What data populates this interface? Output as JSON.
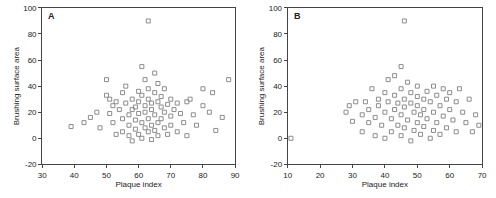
{
  "chart_data": [
    {
      "type": "scatter",
      "title": "A",
      "xlabel": "Plaque index",
      "ylabel": "Brushing surface area",
      "x": [
        39,
        43,
        45,
        47,
        48,
        50,
        50,
        51,
        51,
        52,
        52,
        53,
        53,
        54,
        55,
        55,
        55,
        56,
        56,
        57,
        57,
        57,
        58,
        58,
        58,
        59,
        59,
        59,
        60,
        60,
        60,
        60,
        61,
        61,
        61,
        61,
        62,
        62,
        62,
        62,
        63,
        63,
        63,
        63,
        63,
        64,
        64,
        64,
        64,
        65,
        65,
        65,
        65,
        66,
        66,
        66,
        66,
        67,
        67,
        67,
        68,
        68,
        68,
        69,
        69,
        70,
        70,
        70,
        71,
        72,
        72,
        73,
        74,
        75,
        75,
        76,
        77,
        78,
        80,
        80,
        82,
        83,
        84,
        86,
        88
      ],
      "values": [
        9,
        12,
        16,
        20,
        8,
        45,
        33,
        30,
        19,
        25,
        12,
        3,
        28,
        22,
        35,
        15,
        5,
        27,
        40,
        18,
        10,
        2,
        30,
        22,
        -2,
        24,
        14,
        7,
        36,
        28,
        19,
        3,
        55,
        33,
        12,
        0,
        45,
        25,
        20,
        8,
        90,
        38,
        30,
        15,
        5,
        27,
        22,
        10,
        -1,
        50,
        35,
        18,
        6,
        42,
        28,
        12,
        2,
        32,
        24,
        15,
        38,
        20,
        8,
        26,
        3,
        30,
        17,
        10,
        22,
        5,
        27,
        19,
        12,
        28,
        2,
        30,
        18,
        10,
        25,
        38,
        20,
        35,
        6,
        16,
        45
      ],
      "xlim": [
        30,
        90
      ],
      "xticks": [
        30,
        40,
        50,
        60,
        70,
        80,
        90
      ],
      "ylim": [
        -20,
        100
      ],
      "yticks": [
        -20,
        0,
        20,
        40,
        60,
        80,
        100
      ],
      "grid": false,
      "color": "#8c8c8c",
      "marker": "square-open"
    },
    {
      "type": "scatter",
      "title": "B",
      "xlabel": "Plaque index",
      "ylabel": "Brushing surface area",
      "x": [
        11,
        28,
        29,
        30,
        31,
        33,
        33,
        34,
        35,
        35,
        36,
        37,
        37,
        38,
        38,
        39,
        40,
        40,
        40,
        41,
        41,
        42,
        42,
        43,
        43,
        43,
        44,
        44,
        45,
        45,
        45,
        45,
        46,
        46,
        46,
        46,
        47,
        47,
        48,
        48,
        48,
        49,
        49,
        50,
        50,
        50,
        50,
        51,
        51,
        52,
        52,
        52,
        53,
        53,
        54,
        54,
        55,
        55,
        55,
        56,
        56,
        57,
        57,
        58,
        58,
        59,
        59,
        60,
        60,
        61,
        62,
        62,
        63,
        64,
        65,
        66,
        67,
        68,
        69
      ],
      "values": [
        0,
        20,
        25,
        13,
        28,
        18,
        5,
        28,
        22,
        12,
        38,
        16,
        2,
        30,
        25,
        10,
        35,
        20,
        0,
        45,
        28,
        15,
        5,
        48,
        33,
        22,
        27,
        10,
        55,
        38,
        18,
        2,
        90,
        30,
        24,
        8,
        43,
        14,
        35,
        27,
        -2,
        20,
        6,
        40,
        32,
        25,
        12,
        18,
        3,
        30,
        22,
        9,
        36,
        15,
        28,
        0,
        40,
        20,
        6,
        33,
        12,
        25,
        3,
        38,
        17,
        30,
        8,
        22,
        35,
        14,
        28,
        5,
        38,
        20,
        12,
        30,
        5,
        18,
        10
      ],
      "xlim": [
        10,
        70
      ],
      "xticks": [
        10,
        20,
        30,
        40,
        50,
        60,
        70
      ],
      "ylim": [
        -20,
        100
      ],
      "yticks": [
        -20,
        0,
        20,
        40,
        60,
        80,
        100
      ],
      "grid": false,
      "color": "#8c8c8c",
      "marker": "square-open"
    }
  ]
}
